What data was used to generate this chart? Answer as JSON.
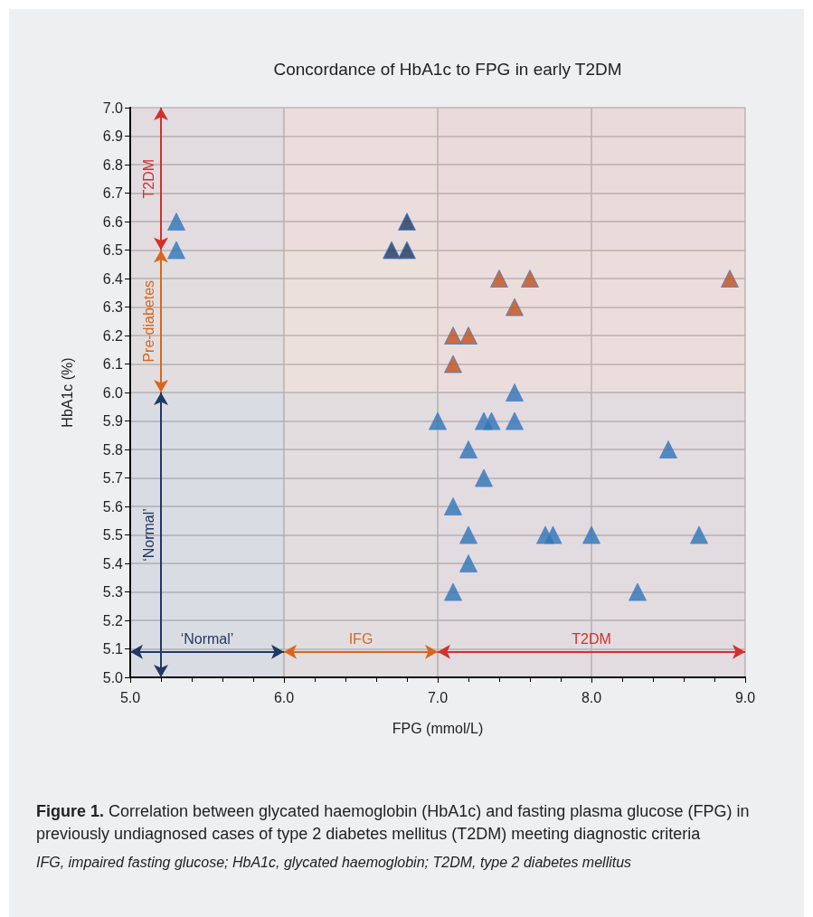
{
  "chart_data": {
    "type": "scatter",
    "title": "Concordance of HbA1c to FPG in early T2DM",
    "xlabel": "FPG (mmol/L)",
    "ylabel": "HbA1c (%)",
    "xlim": [
      5,
      9
    ],
    "xticks": [
      {
        "value": 5,
        "label": "5.0"
      },
      {
        "value": 6,
        "label": "6.0"
      },
      {
        "value": 7,
        "label": "7.0"
      },
      {
        "value": 8,
        "label": "8.0"
      },
      {
        "value": 9,
        "label": "9.0"
      }
    ],
    "ylim": [
      5,
      7
    ],
    "yticks": [
      {
        "value": 5,
        "label": "5.0"
      },
      5.1,
      5.2,
      5.3,
      5.4,
      5.5,
      5.6,
      5.7,
      5.8,
      5.9,
      {
        "value": 6,
        "label": "6.0"
      },
      6.1,
      6.2,
      6.3,
      6.4,
      6.5,
      6.6,
      6.7,
      6.8,
      6.9,
      {
        "value": 7,
        "label": "7.0"
      }
    ],
    "grid": true,
    "marker": "triangle",
    "series": [
      {
        "color": "#2e75b6",
        "x": [
          5.3,
          5.3,
          7.5,
          7.0,
          7.3,
          7.35,
          7.5,
          7.2,
          8.5,
          7.3,
          7.1,
          7.2,
          7.7,
          7.75,
          8.0,
          8.7,
          7.2,
          7.1,
          8.3
        ],
        "values": [
          6.6,
          6.5,
          6.0,
          5.9,
          5.9,
          5.9,
          5.9,
          5.8,
          5.8,
          5.7,
          5.6,
          5.5,
          5.5,
          5.5,
          5.5,
          5.5,
          5.4,
          5.3,
          5.3
        ]
      },
      {
        "color": "#1f3864",
        "x": [
          6.7,
          6.8,
          6.8
        ],
        "values": [
          6.5,
          6.5,
          6.6
        ]
      },
      {
        "color": "#c0501a",
        "x": [
          7.4,
          7.6,
          8.9,
          7.5,
          7.1,
          7.2,
          7.1
        ],
        "values": [
          6.4,
          6.4,
          6.4,
          6.3,
          6.2,
          6.2,
          6.1
        ]
      }
    ],
    "bands": [
      {
        "axis": "y",
        "from": 6.5,
        "to": 7.0,
        "label": "T2DM",
        "color": "#d0312d"
      },
      {
        "axis": "y",
        "from": 6.0,
        "to": 6.5,
        "label": "Pre-diabetes",
        "color": "#d9661f"
      },
      {
        "axis": "y",
        "from": 5.0,
        "to": 6.0,
        "label": "‘Normal’",
        "color": "#1f3864"
      },
      {
        "axis": "x",
        "from": 5.0,
        "to": 6.0,
        "label": "‘Normal’",
        "color": "#1f3864"
      },
      {
        "axis": "x",
        "from": 6.0,
        "to": 7.0,
        "label": "IFG",
        "color": "#d9661f"
      },
      {
        "axis": "x",
        "from": 7.0,
        "to": 9.0,
        "label": "T2DM",
        "color": "#d0312d"
      }
    ],
    "annotations": [
      "Figure 1. Correlation between glycated haemoglobin (HbA1c) and fasting plasma glucose (FPG) in previously undiagnosed cases of type 2 diabetes mellitus (T2DM) meeting diagnostic criteria",
      "IFG, impaired fasting glucose; HbA1c, glycated haemoglobin; T2DM, type 2 diabetes mellitus"
    ]
  }
}
